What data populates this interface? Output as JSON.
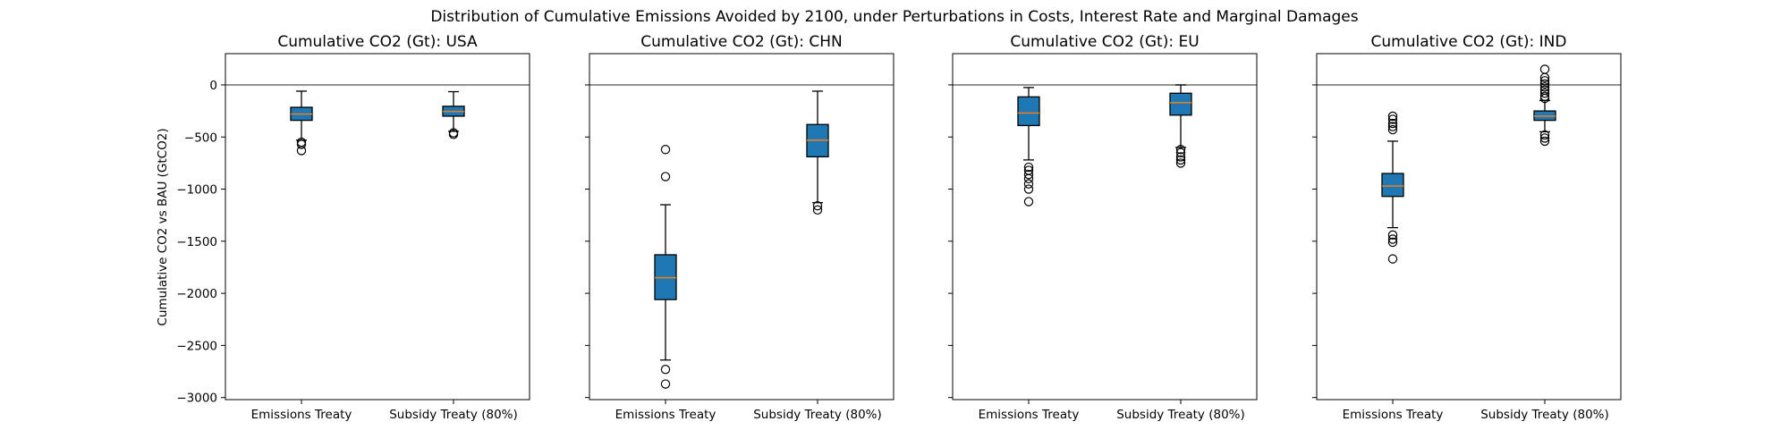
{
  "chart_data": {
    "suptitle": "Distribution of Cumulative Emissions Avoided by 2100, under Perturbations in Costs, Interest Rate and Marginal Damages",
    "type": "box",
    "ylabel": "Cumulative CO2 vs BAU (GtCO2)",
    "ylim": [
      -3020,
      300
    ],
    "yticks": [
      0,
      -500,
      -1000,
      -1500,
      -2000,
      -2500,
      -3000
    ],
    "categories": [
      "Emissions Treaty",
      "Subsidy Treaty (80%)"
    ],
    "box_color": "#1f77b4",
    "median_color": "#ff7f0e",
    "reference_line": 0,
    "panels": [
      {
        "title": "Cumulative CO2 (Gt): USA",
        "boxes": [
          {
            "whisker_low": -530,
            "q1": -340,
            "median": -280,
            "q3": -215,
            "whisker_high": -60,
            "outliers": [
              -550,
              -570,
              -630
            ]
          },
          {
            "whisker_low": -445,
            "q1": -300,
            "median": -255,
            "q3": -205,
            "whisker_high": -65,
            "outliers": [
              -460,
              -475
            ]
          }
        ]
      },
      {
        "title": "Cumulative CO2 (Gt): CHN",
        "boxes": [
          {
            "whisker_low": -2640,
            "q1": -2060,
            "median": -1850,
            "q3": -1630,
            "whisker_high": -1150,
            "outliers": [
              -620,
              -880,
              -2730,
              -2870
            ]
          },
          {
            "whisker_low": -1130,
            "q1": -690,
            "median": -530,
            "q3": -380,
            "whisker_high": -60,
            "outliers": [
              -1160,
              -1200
            ]
          }
        ]
      },
      {
        "title": "Cumulative CO2 (Gt): EU",
        "boxes": [
          {
            "whisker_low": -720,
            "q1": -390,
            "median": -270,
            "q3": -115,
            "whisker_high": -25,
            "outliers": [
              -790,
              -820,
              -860,
              -900,
              -950,
              -1000,
              -1120
            ]
          },
          {
            "whisker_low": -600,
            "q1": -290,
            "median": -170,
            "q3": -80,
            "whisker_high": 0,
            "outliers": [
              -620,
              -650,
              -690,
              -720,
              -750
            ]
          }
        ]
      },
      {
        "title": "Cumulative CO2 (Gt): IND",
        "boxes": [
          {
            "whisker_low": -1370,
            "q1": -1070,
            "median": -970,
            "q3": -850,
            "whisker_high": -540,
            "outliers": [
              -300,
              -330,
              -370,
              -400,
              -430,
              -1440,
              -1480,
              -1510,
              -1670
            ]
          },
          {
            "whisker_low": -450,
            "q1": -340,
            "median": -300,
            "q3": -250,
            "whisker_high": -150,
            "outliers": [
              150,
              70,
              40,
              10,
              -20,
              -50,
              -80,
              -110,
              -130,
              -480,
              -510,
              -540
            ]
          }
        ]
      }
    ]
  }
}
